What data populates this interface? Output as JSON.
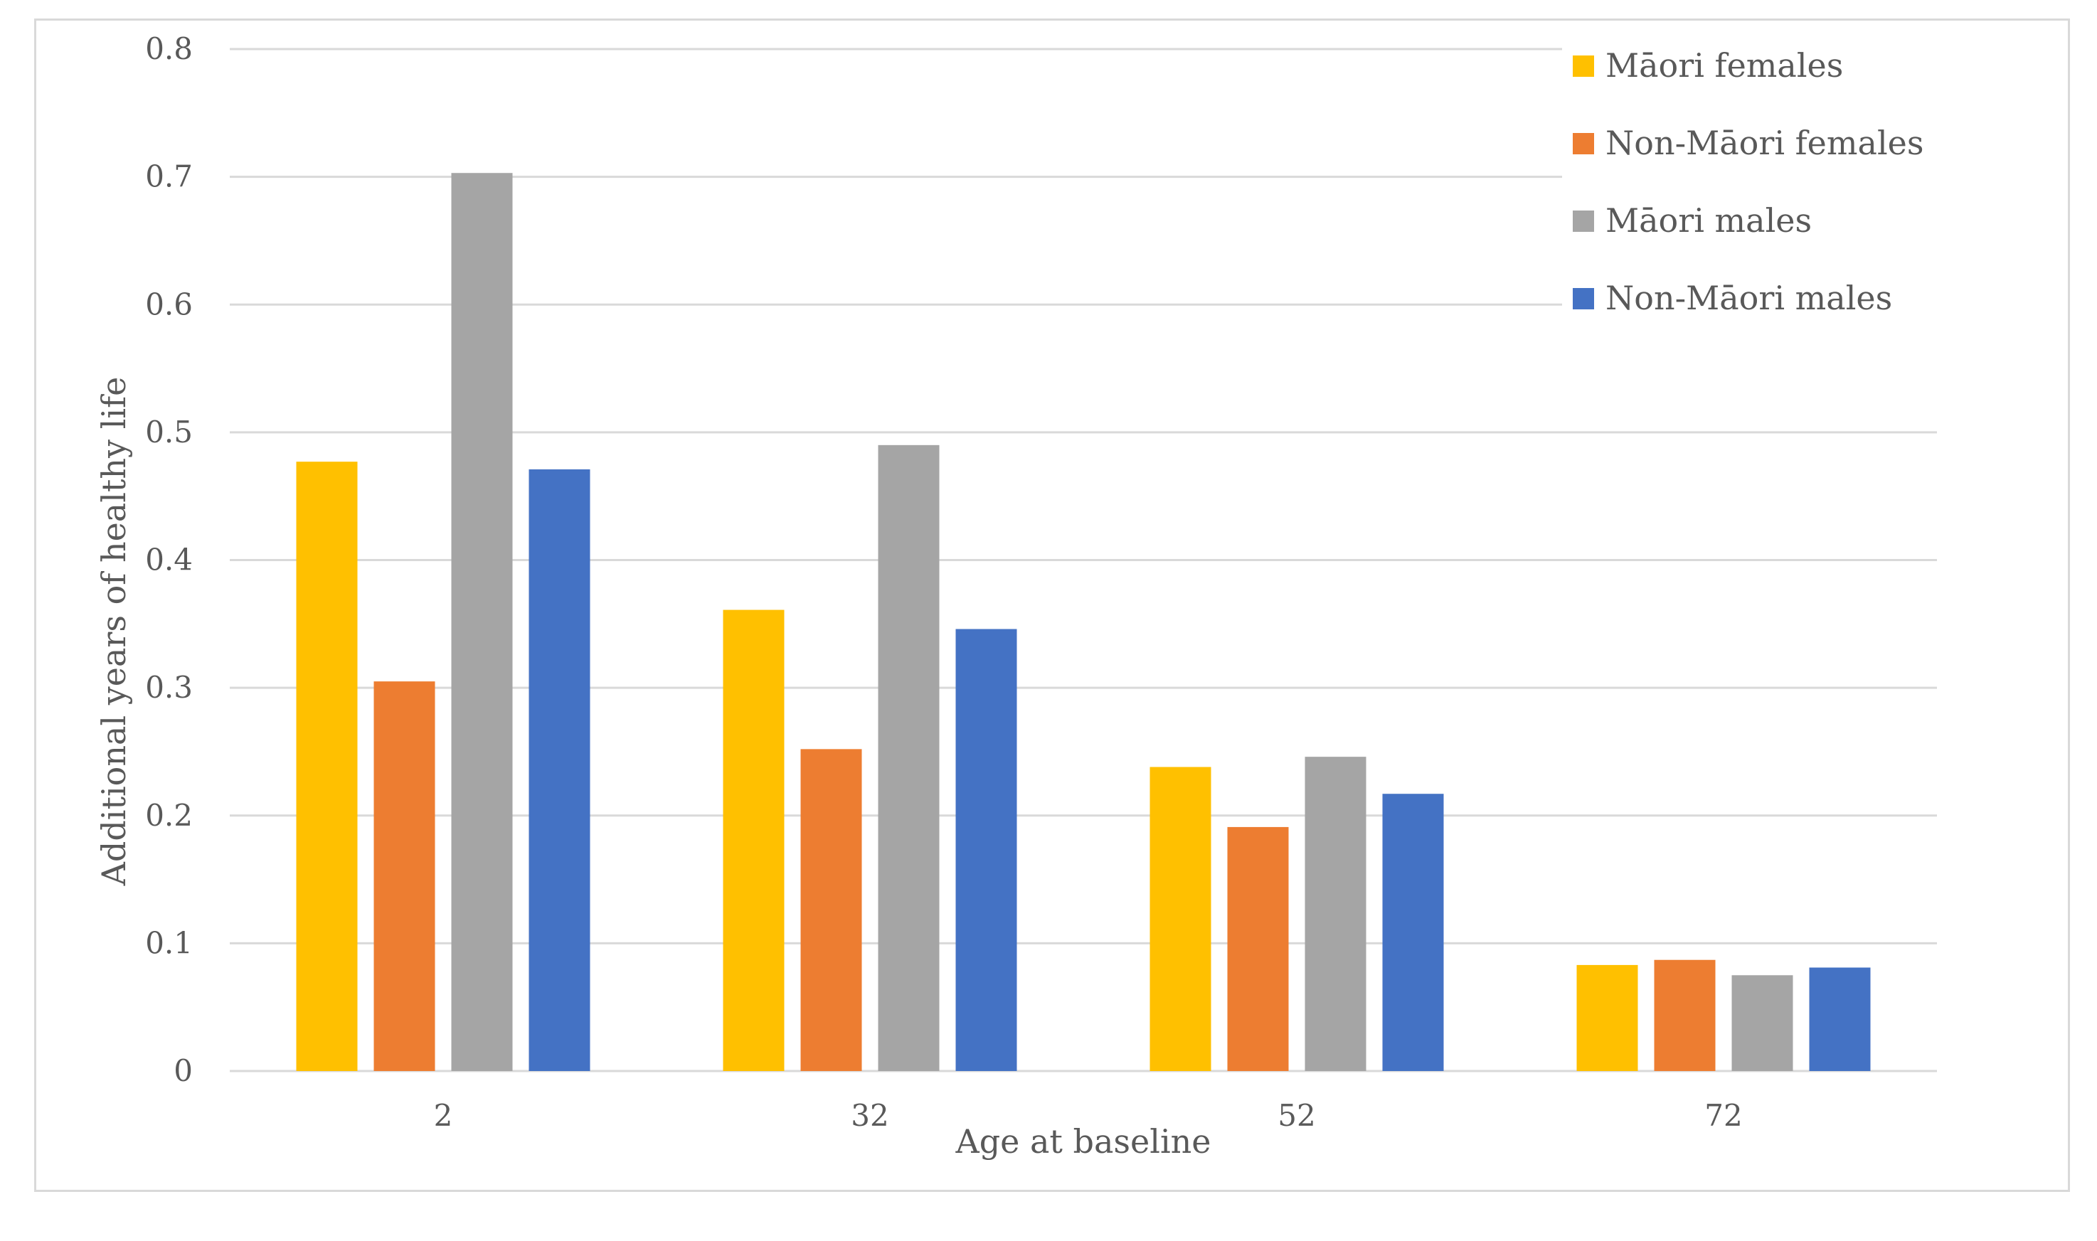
{
  "chart_data": {
    "type": "bar",
    "title": "",
    "xlabel": "Age at baseline",
    "ylabel": "Additional years of healthy life",
    "categories": [
      "2",
      "32",
      "52",
      "72"
    ],
    "series": [
      {
        "name": "Māori females",
        "color": "#FFC000",
        "values": [
          0.477,
          0.361,
          0.238,
          0.083
        ]
      },
      {
        "name": "Non-Māori females",
        "color": "#ED7D31",
        "values": [
          0.305,
          0.252,
          0.191,
          0.087
        ]
      },
      {
        "name": "Māori males",
        "color": "#A5A5A5",
        "values": [
          0.703,
          0.49,
          0.246,
          0.075
        ]
      },
      {
        "name": "Non-Māori males",
        "color": "#4472C4",
        "values": [
          0.471,
          0.346,
          0.217,
          0.081
        ]
      }
    ],
    "ylim": [
      0,
      0.8
    ],
    "yticks": [
      "0",
      "0.1",
      "0.2",
      "0.3",
      "0.4",
      "0.5",
      "0.6",
      "0.7",
      "0.8"
    ],
    "grid": true,
    "legend_position": "top-right",
    "gridline_color": "#D9D9D9"
  }
}
